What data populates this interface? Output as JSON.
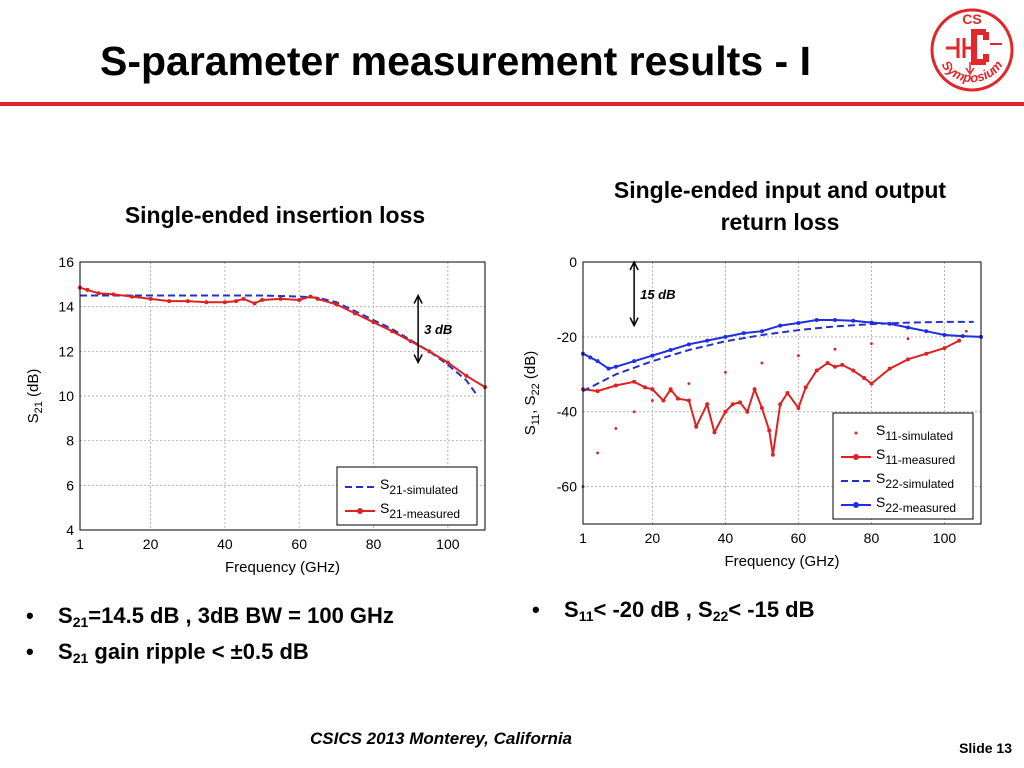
{
  "slide": {
    "title": "S-parameter measurement results - I",
    "logo_text_top": "CS",
    "logo_text_bottom": "Symposium",
    "footer": "CSICS 2013 Monterey, California",
    "slide_number": "Slide 13",
    "colors": {
      "accent_red": "#e3262a",
      "sim_blue": "#2431c8",
      "meas_red": "#dd2222",
      "meas_blue": "#1e2ee0"
    }
  },
  "left_panel": {
    "title": "Single-ended insertion loss",
    "bullets": [
      {
        "sub": "21",
        "rest": "=14.5 dB , 3dB BW = 100 GHz"
      },
      {
        "sub": "21",
        "rest": " gain ripple < ±0.5 dB"
      }
    ]
  },
  "right_panel": {
    "title_line1": "Single-ended input and output",
    "title_line2": "return loss",
    "bullet": {
      "sub1": "11",
      "mid": "< -20 dB , S",
      "sub2": "22",
      "rest": "< -15 dB"
    }
  },
  "chart_data": [
    {
      "type": "line",
      "xlabel": "Frequency (GHz)",
      "ylabel": "S",
      "ylabel_sub": "21",
      "ylabel_unit": " (dB)",
      "xlim": [
        1,
        110
      ],
      "ylim": [
        4,
        16
      ],
      "xticks": [
        1,
        20,
        40,
        60,
        80,
        100
      ],
      "yticks": [
        4,
        6,
        8,
        10,
        12,
        14,
        16
      ],
      "grid": true,
      "legend_position": "bottom-right",
      "annotation": "3 dB",
      "series": [
        {
          "name": "S",
          "sub": "21",
          "suffix": "-simulated",
          "style": "dashed",
          "color": "#2431c8",
          "x": [
            1,
            10,
            20,
            30,
            40,
            50,
            60,
            65,
            70,
            75,
            80,
            85,
            90,
            95,
            100,
            105,
            108
          ],
          "y": [
            14.5,
            14.5,
            14.5,
            14.5,
            14.5,
            14.5,
            14.45,
            14.4,
            14.2,
            13.8,
            13.4,
            13.0,
            12.5,
            12.0,
            11.4,
            10.7,
            10.0
          ]
        },
        {
          "name": "S",
          "sub": "21",
          "suffix": "-measured",
          "style": "solid-markers",
          "color": "#dd2222",
          "x": [
            1,
            3,
            6,
            10,
            15,
            20,
            25,
            30,
            35,
            40,
            43,
            45,
            48,
            50,
            55,
            60,
            63,
            65,
            70,
            75,
            80,
            85,
            90,
            95,
            100,
            105,
            110
          ],
          "y": [
            14.85,
            14.75,
            14.6,
            14.55,
            14.45,
            14.35,
            14.25,
            14.25,
            14.2,
            14.2,
            14.25,
            14.35,
            14.15,
            14.3,
            14.35,
            14.3,
            14.45,
            14.35,
            14.1,
            13.7,
            13.3,
            12.9,
            12.45,
            12.0,
            11.5,
            10.9,
            10.4
          ]
        }
      ]
    },
    {
      "type": "line",
      "xlabel": "Frequency (GHz)",
      "ylabel": "S",
      "ylabel_sub1": "11",
      "ylabel_mid": ", S",
      "ylabel_sub2": "22",
      "ylabel_unit": " (dB)",
      "xlim": [
        1,
        110
      ],
      "ylim": [
        -70,
        0
      ],
      "xticks": [
        1,
        20,
        40,
        60,
        80,
        100
      ],
      "yticks": [
        0,
        -20,
        -40,
        -60
      ],
      "grid": true,
      "legend_position": "bottom-right",
      "annotation": "15 dB",
      "series": [
        {
          "name": "S",
          "sub": "11",
          "suffix": "-simulated",
          "style": "dotted",
          "color": "#dd2222",
          "x": [
            1,
            5,
            10,
            15,
            20,
            25,
            30,
            40,
            50,
            60,
            70,
            80,
            90,
            100,
            106
          ],
          "y": [
            -60,
            -51,
            -44.5,
            -40,
            -37,
            -34.5,
            -32.5,
            -29.5,
            -27,
            -25,
            -23.3,
            -21.8,
            -20.5,
            -19.3,
            -18.5
          ]
        },
        {
          "name": "S",
          "sub": "11",
          "suffix": "-measured",
          "style": "solid-markers",
          "color": "#dd2222",
          "x": [
            1,
            5,
            10,
            15,
            18,
            20,
            23,
            25,
            27,
            30,
            32,
            35,
            37,
            40,
            42,
            44,
            46,
            48,
            50,
            52,
            53,
            55,
            57,
            60,
            62,
            65,
            68,
            70,
            72,
            75,
            78,
            80,
            85,
            90,
            95,
            100,
            104
          ],
          "y": [
            -34,
            -34.5,
            -33,
            -32,
            -33.5,
            -34,
            -37,
            -34,
            -36.5,
            -37,
            -44,
            -38,
            -45.5,
            -40,
            -38,
            -37.5,
            -40,
            -34,
            -39,
            -45,
            -51.5,
            -38,
            -35,
            -39,
            -33.5,
            -29,
            -27,
            -28,
            -27.5,
            -29,
            -31,
            -32.5,
            -28.5,
            -26,
            -24.5,
            -23,
            -21
          ]
        },
        {
          "name": "S",
          "sub": "22",
          "suffix": "-simulated",
          "style": "dashed",
          "color": "#2431c8",
          "x": [
            1,
            10,
            20,
            30,
            40,
            50,
            60,
            70,
            80,
            90,
            100,
            108
          ],
          "y": [
            -34.5,
            -30,
            -26.5,
            -23.5,
            -21.2,
            -19.5,
            -18.2,
            -17.2,
            -16.6,
            -16.2,
            -16.0,
            -16.0
          ]
        },
        {
          "name": "S",
          "sub": "22",
          "suffix": "-measured",
          "style": "solid-markers",
          "color": "#1e2ee0",
          "x": [
            1,
            3,
            5,
            8,
            10,
            15,
            20,
            25,
            30,
            35,
            40,
            45,
            50,
            55,
            60,
            65,
            70,
            75,
            80,
            85,
            90,
            95,
            100,
            105,
            110
          ],
          "y": [
            -24.5,
            -25.5,
            -26.5,
            -28.5,
            -28,
            -26.5,
            -25,
            -23.5,
            -22,
            -21,
            -20,
            -19,
            -18.5,
            -17,
            -16.3,
            -15.5,
            -15.5,
            -15.7,
            -16.2,
            -16.5,
            -17.5,
            -18.5,
            -19.5,
            -19.8,
            -20
          ]
        }
      ]
    }
  ]
}
